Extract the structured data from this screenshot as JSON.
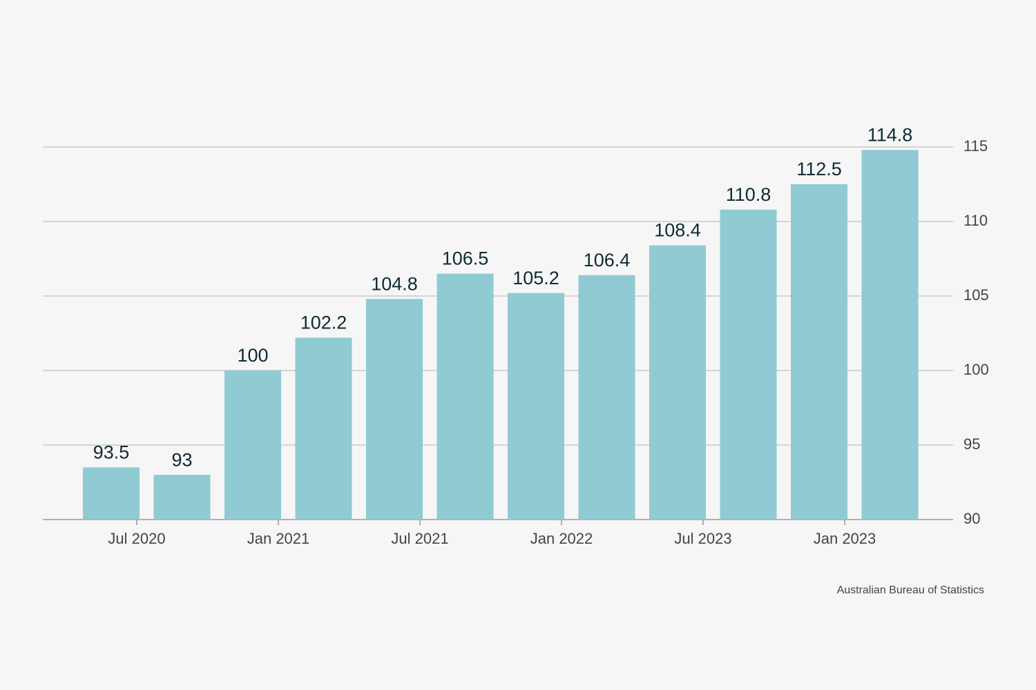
{
  "chart_data": {
    "type": "bar",
    "categories": [
      "Jul 2020",
      null,
      "Jan 2021",
      null,
      "Jul 2021",
      null,
      "Jan 2022",
      null,
      "Jul 2023",
      null,
      "Jan 2023",
      null
    ],
    "values": [
      93.5,
      93,
      100,
      102.2,
      104.8,
      106.5,
      105.2,
      106.4,
      108.4,
      110.8,
      112.5,
      114.8
    ],
    "color": "#90cad2",
    "ylim": [
      90,
      115
    ],
    "yticks": [
      90,
      95,
      100,
      105,
      110,
      115
    ],
    "grid": true,
    "source": "Australian Bureau of Statistics"
  }
}
